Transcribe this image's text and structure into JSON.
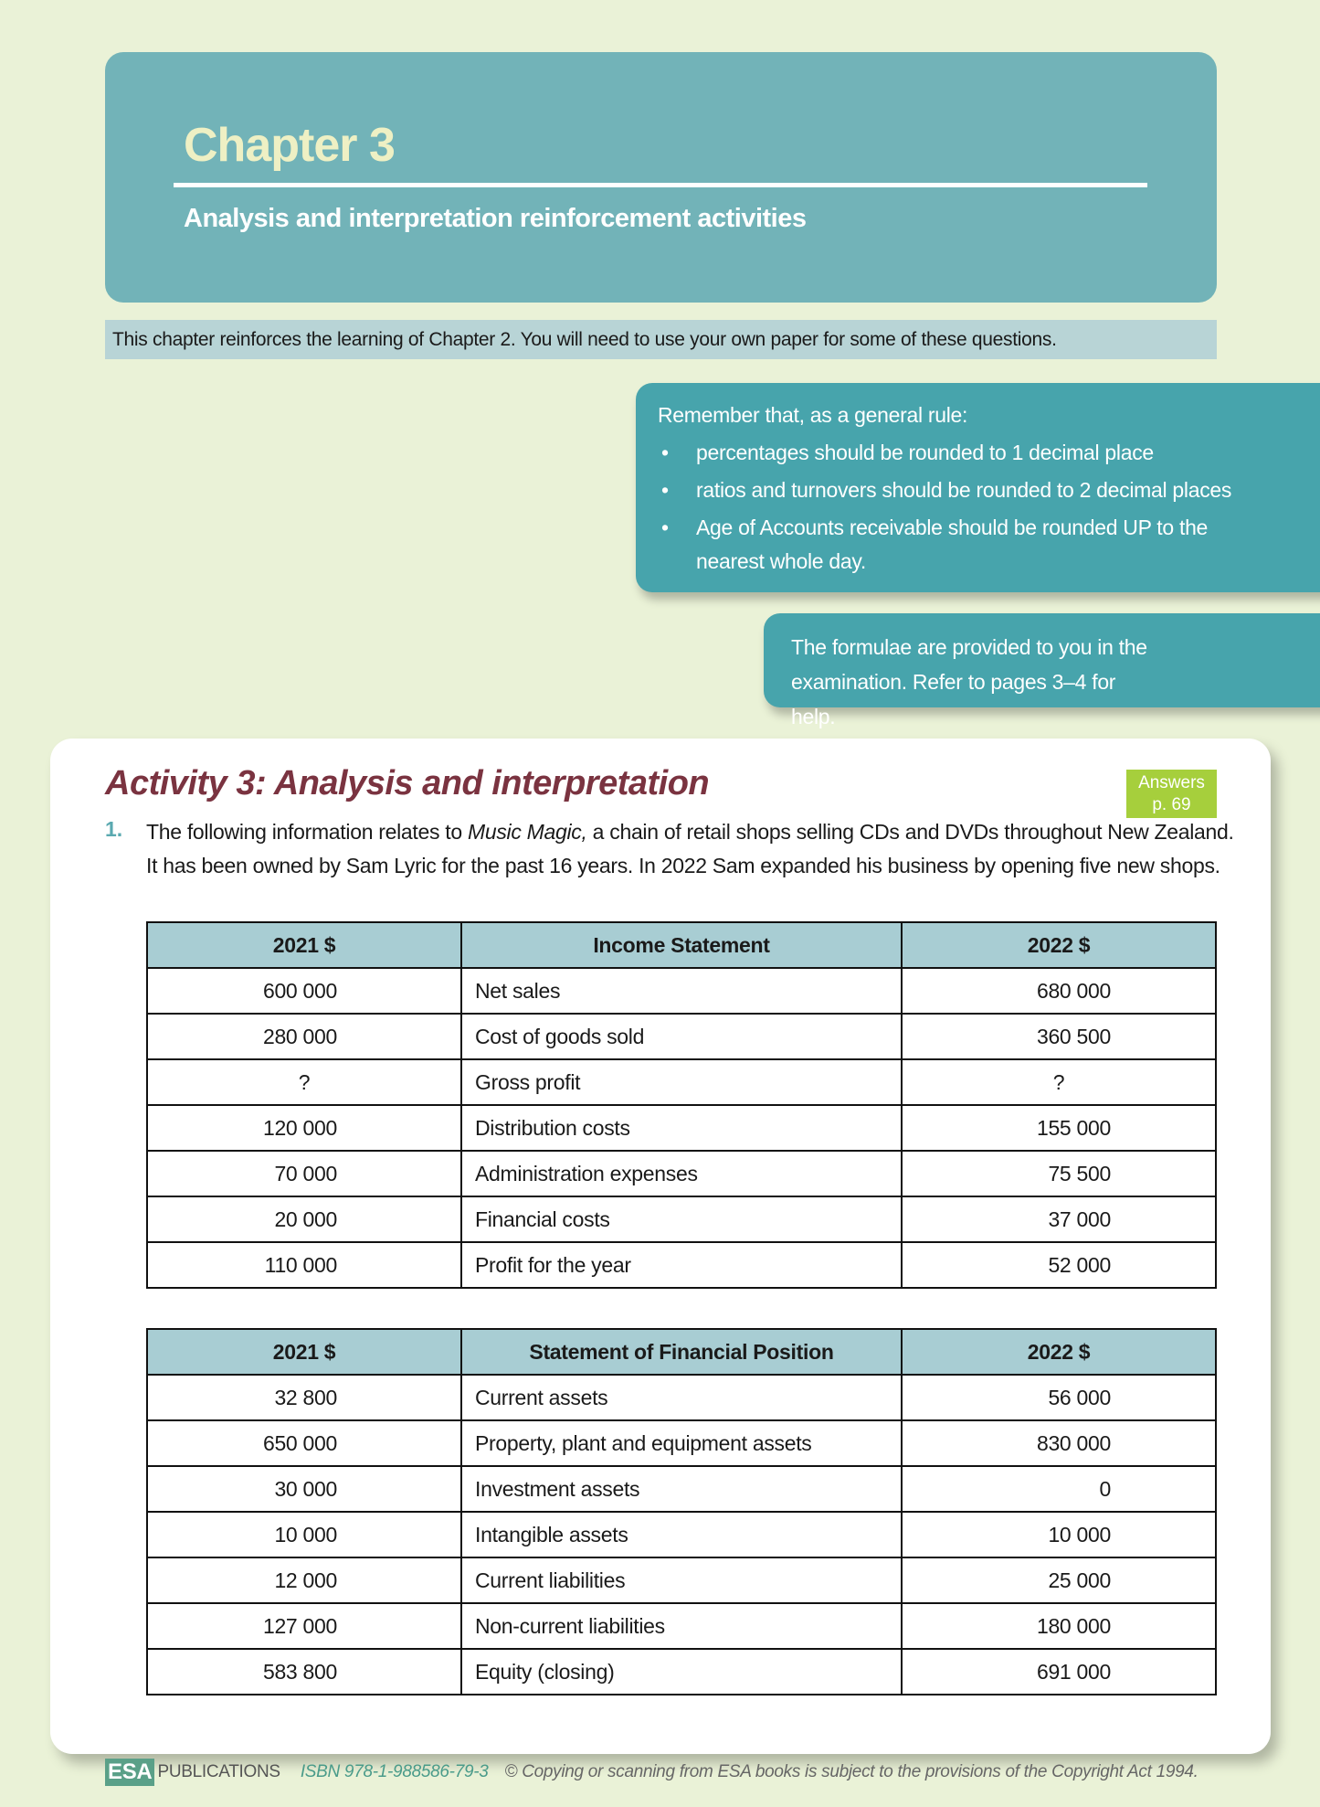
{
  "header": {
    "chapter_word": "Chapter",
    "chapter_number": "3",
    "subtitle": "Analysis and interpretation reinforcement activities"
  },
  "intro": "This chapter reinforces the learning of Chapter 2. You will need to use your own paper for some of these questions.",
  "rules_box": {
    "lead": "Remember that, as a general rule:",
    "items": [
      "percentages should be rounded to 1 decimal place",
      "ratios and turnovers should be rounded to 2 decimal places",
      "Age of Accounts receivable should be rounded UP to the nearest whole day."
    ]
  },
  "formulae_box": "The formulae are provided to you in the examination. Refer to pages 3–4 for help.",
  "activity": {
    "title": "Activity 3: Analysis and interpretation",
    "answers_label": "Answers",
    "answers_page": "p. 69",
    "question_number": "1.",
    "question_pre": "The following information relates to ",
    "question_italic": "Music Magic,",
    "question_post": " a chain of retail shops selling CDs and DVDs throughout New Zealand. It has been owned by Sam Lyric for the past 16 years. In 2022 Sam expanded his business by opening five new shops."
  },
  "income_statement": {
    "headers": [
      "2021 $",
      "Income Statement",
      "2022 $"
    ],
    "rows": [
      [
        "600 000",
        "Net sales",
        "680 000"
      ],
      [
        "280 000",
        "Cost of goods sold",
        "360 500"
      ],
      [
        "?",
        "Gross profit",
        "?"
      ],
      [
        "120 000",
        "Distribution costs",
        "155 000"
      ],
      [
        "70 000",
        "Administration expenses",
        "75 500"
      ],
      [
        "20 000",
        "Financial costs",
        "37 000"
      ],
      [
        "110 000",
        "Profit for the year",
        "52 000"
      ]
    ]
  },
  "financial_position": {
    "headers": [
      "2021 $",
      "Statement of Financial Position",
      "2022 $"
    ],
    "rows": [
      [
        "32 800",
        "Current assets",
        "56 000"
      ],
      [
        "650 000",
        "Property, plant and equipment assets",
        "830 000"
      ],
      [
        "30 000",
        "Investment assets",
        "0"
      ],
      [
        "10 000",
        "Intangible assets",
        "10 000"
      ],
      [
        "12 000",
        "Current liabilities",
        "25 000"
      ],
      [
        "127 000",
        "Non-current liabilities",
        "180 000"
      ],
      [
        "583 800",
        "Equity (closing)",
        "691 000"
      ]
    ]
  },
  "footer": {
    "logo": "ESA",
    "publisher": "PUBLICATIONS",
    "isbn": "ISBN 978-1-988586-79-3",
    "copyright": "© Copying or scanning from ESA books is subject to the provisions of the Copyright Act 1994."
  },
  "colors": {
    "background": "#eaf2d7",
    "header": "#72b3b8",
    "note": "#47a4ac",
    "title": "#7a3340",
    "answers": "#a6cf3c",
    "table_header": "#a8cdd3"
  }
}
